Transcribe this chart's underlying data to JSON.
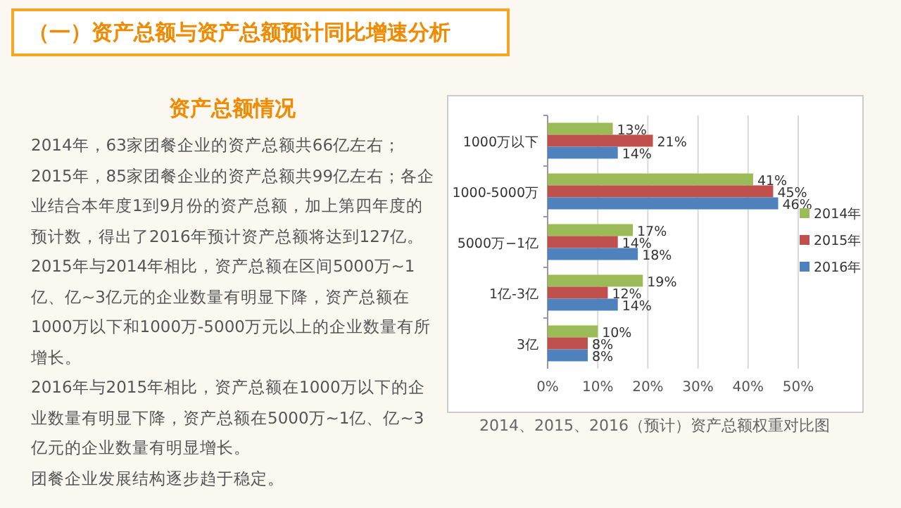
{
  "chart_data": {
    "type": "bar",
    "orientation": "horizontal",
    "title": "（一）资产总额与资产总额预计同比增速分析",
    "subtitle": "资产总额情况",
    "annotations": [
      "2014年，63家团餐企业的资产总额共66亿左右；2015年，85家团餐企业的资产总额共99亿左右；各企业结合本年度1到9月份的资产总额，加上第四年度的预计数，得出了2016年预计资产总额将达到127亿。",
      "2015年与2014年相比，资产总额在区间5000万~1亿、亿~3亿元的企业数量有明显下降，资产总额在1000万以下和1000万-5000万元以上的企业数量有所增长。",
      "2016年与2015年相比，资产总额在1000万以下的企业数量有明显下降，资产总额在5000万~1亿、亿~3亿元的企业数量有明显增长。",
      "团餐企业发展结构逐步趋于稳定。",
      "2014、2015、2016（预计）资产总额权重对比图"
    ],
    "categories": [
      "1000万以下",
      "1000-5000万",
      "5000万−1亿",
      "1亿-3亿",
      "3亿"
    ],
    "series": [
      {
        "name": "2014年",
        "color": "#9bbb59",
        "values": [
          13,
          41,
          17,
          19,
          10
        ],
        "value_labels": [
          "13%",
          "41%",
          "17%",
          "19%",
          "10%"
        ]
      },
      {
        "name": "2015年",
        "color": "#c0504d",
        "values": [
          21,
          45,
          14,
          12,
          8
        ],
        "value_labels": [
          "21%",
          "45%",
          "14%",
          "12%",
          "8%"
        ]
      },
      {
        "name": "2016年",
        "color": "#4f81bd",
        "values": [
          14,
          46,
          18,
          14,
          8
        ],
        "value_labels": [
          "14%",
          "46%",
          "18%",
          "14%",
          "8%"
        ]
      }
    ],
    "xlim": [
      0,
      50
    ],
    "xticks": [
      {
        "value": 0,
        "label": "0%"
      },
      {
        "value": 10,
        "label": "10%"
      },
      {
        "value": 20,
        "label": "20%"
      },
      {
        "value": 30,
        "label": "30%"
      },
      {
        "value": 40,
        "label": "40%"
      },
      {
        "value": 50,
        "label": "50%"
      }
    ],
    "grid": "x",
    "legend": "right"
  }
}
